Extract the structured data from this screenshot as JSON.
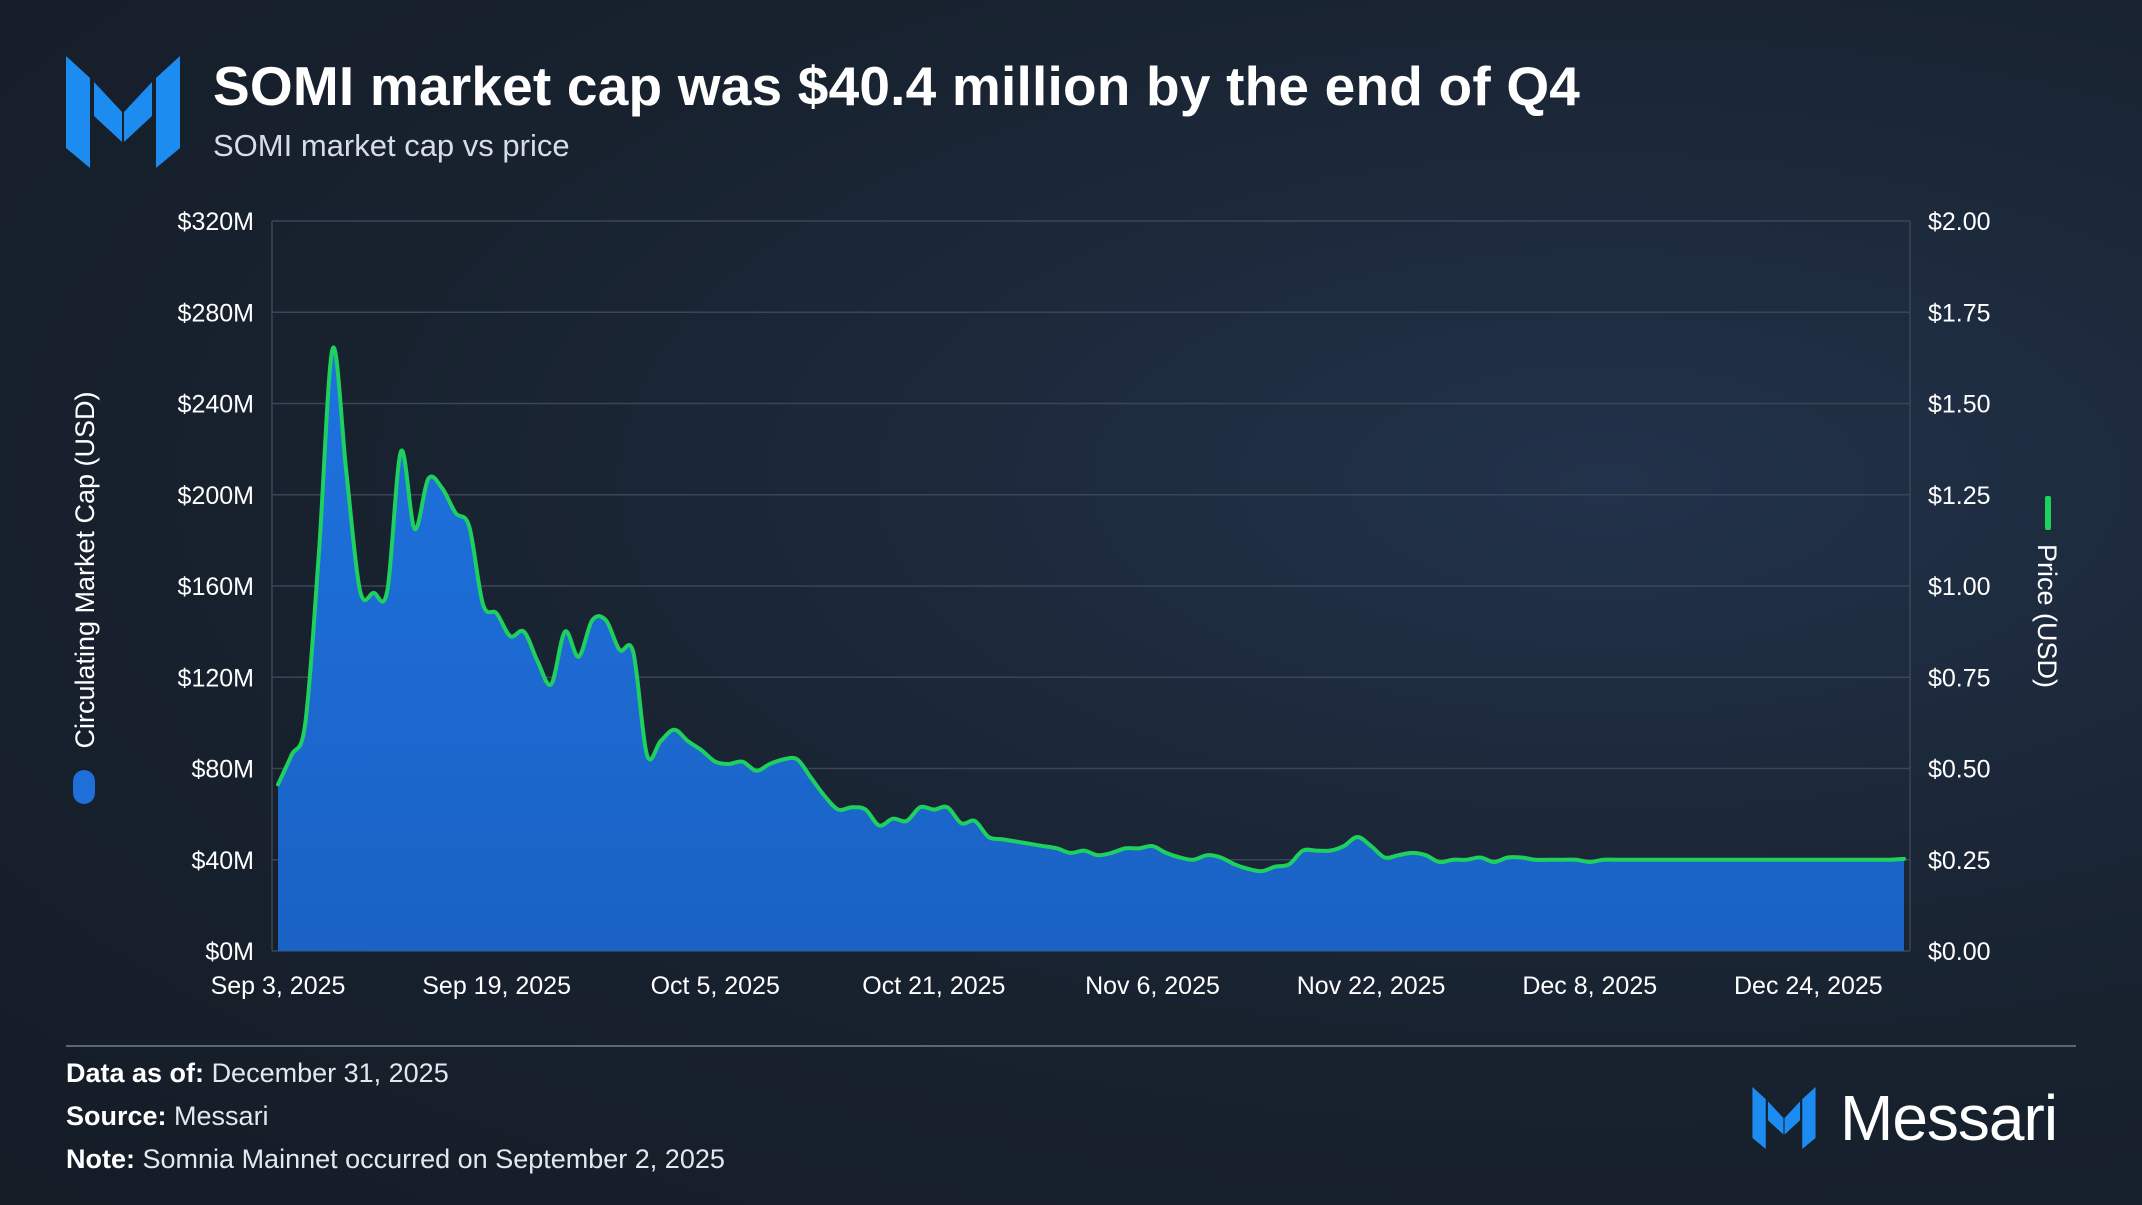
{
  "header": {
    "title": "SOMI market cap was $40.4 million by the end of Q4",
    "subtitle": "SOMI market cap vs price"
  },
  "footer": {
    "data_as_of_label": "Data as of:",
    "data_as_of_value": "December 31, 2025",
    "source_label": "Source:",
    "source_value": "Messari",
    "note_label": "Note:",
    "note_value": "Somnia Mainnet occurred on September 2, 2025",
    "brand": "Messari"
  },
  "colors": {
    "area_fill": "#1e6fd9",
    "price_line": "#1ed15f",
    "grid": "#3a4656",
    "brand_blue": "#1d8cf0"
  },
  "chart_data": {
    "type": "area",
    "title": "SOMI market cap vs price",
    "x_start": "2025-09-03",
    "x_end": "2025-12-31",
    "x_tick_labels": [
      "Sep 3, 2025",
      "Sep 19, 2025",
      "Oct 5, 2025",
      "Oct 21, 2025",
      "Nov 6, 2025",
      "Nov 22, 2025",
      "Dec 8, 2025",
      "Dec 24, 2025"
    ],
    "x_tick_days": [
      0,
      16,
      32,
      48,
      64,
      80,
      96,
      112
    ],
    "y_left": {
      "label": "Circulating Market Cap (USD)",
      "range": [
        0,
        320
      ],
      "ticks": [
        0,
        40,
        80,
        120,
        160,
        200,
        240,
        280,
        320
      ],
      "tick_labels": [
        "$0M",
        "$40M",
        "$80M",
        "$120M",
        "$160M",
        "$200M",
        "$240M",
        "$280M",
        "$320M"
      ]
    },
    "y_right": {
      "label": "Price (USD)",
      "range": [
        0,
        2
      ],
      "ticks": [
        0,
        0.25,
        0.5,
        0.75,
        1.0,
        1.25,
        1.5,
        1.75,
        2.0
      ],
      "tick_labels": [
        "$0.00",
        "$0.25",
        "$0.50",
        "$0.75",
        "$1.00",
        "$1.25",
        "$1.50",
        "$1.75",
        "$2.00"
      ]
    },
    "series": [
      {
        "name": "Circulating Market Cap (USD)",
        "axis": "left",
        "unit": "millions USD",
        "days": [
          0,
          1,
          2,
          3,
          4,
          5,
          6,
          7,
          8,
          9,
          10,
          11,
          12,
          13,
          14,
          15,
          16,
          17,
          18,
          19,
          20,
          21,
          22,
          23,
          24,
          25,
          26,
          27,
          28,
          29,
          30,
          31,
          32,
          33,
          34,
          35,
          36,
          37,
          38,
          39,
          40,
          41,
          42,
          43,
          44,
          45,
          46,
          47,
          48,
          49,
          50,
          51,
          52,
          53,
          54,
          55,
          56,
          57,
          58,
          59,
          60,
          61,
          62,
          63,
          64,
          65,
          66,
          67,
          68,
          69,
          70,
          71,
          72,
          73,
          74,
          75,
          76,
          77,
          78,
          79,
          80,
          81,
          82,
          83,
          84,
          85,
          86,
          87,
          88,
          89,
          90,
          91,
          92,
          93,
          94,
          95,
          96,
          97,
          98,
          99,
          100,
          101,
          102,
          103,
          104,
          105,
          106,
          107,
          108,
          109,
          110,
          111,
          112,
          113,
          114,
          115,
          116,
          117,
          118,
          119
        ],
        "values": [
          73,
          86,
          100,
          175,
          264,
          210,
          158,
          157,
          158,
          219,
          185,
          207,
          203,
          192,
          186,
          152,
          148,
          138,
          140,
          127,
          117,
          140,
          129,
          145,
          145,
          132,
          131,
          86,
          92,
          97,
          92,
          88,
          83,
          82,
          83,
          79,
          82,
          84,
          84,
          76,
          68,
          62,
          63,
          62,
          55,
          58,
          57,
          63,
          62,
          63,
          56,
          57,
          50,
          49,
          48,
          47,
          46,
          45,
          43,
          44,
          42,
          43,
          45,
          45,
          46,
          43,
          41,
          40,
          42,
          41,
          38,
          36,
          35,
          37,
          38,
          44,
          44,
          44,
          46,
          50,
          46,
          41,
          42,
          43,
          42,
          39,
          40,
          40,
          41,
          39,
          41,
          41,
          40,
          40,
          40,
          40,
          39,
          40,
          40,
          40,
          40,
          40,
          40,
          40,
          40,
          40,
          40,
          40,
          40,
          40,
          40,
          40,
          40,
          40,
          40,
          40,
          40,
          40,
          40,
          40.4
        ]
      },
      {
        "name": "Price (USD)",
        "axis": "right",
        "color": "#1ed15f",
        "legend_position": "right-rotated"
      }
    ],
    "legend": [
      "Circulating Market Cap (USD)",
      "Price (USD)"
    ]
  }
}
